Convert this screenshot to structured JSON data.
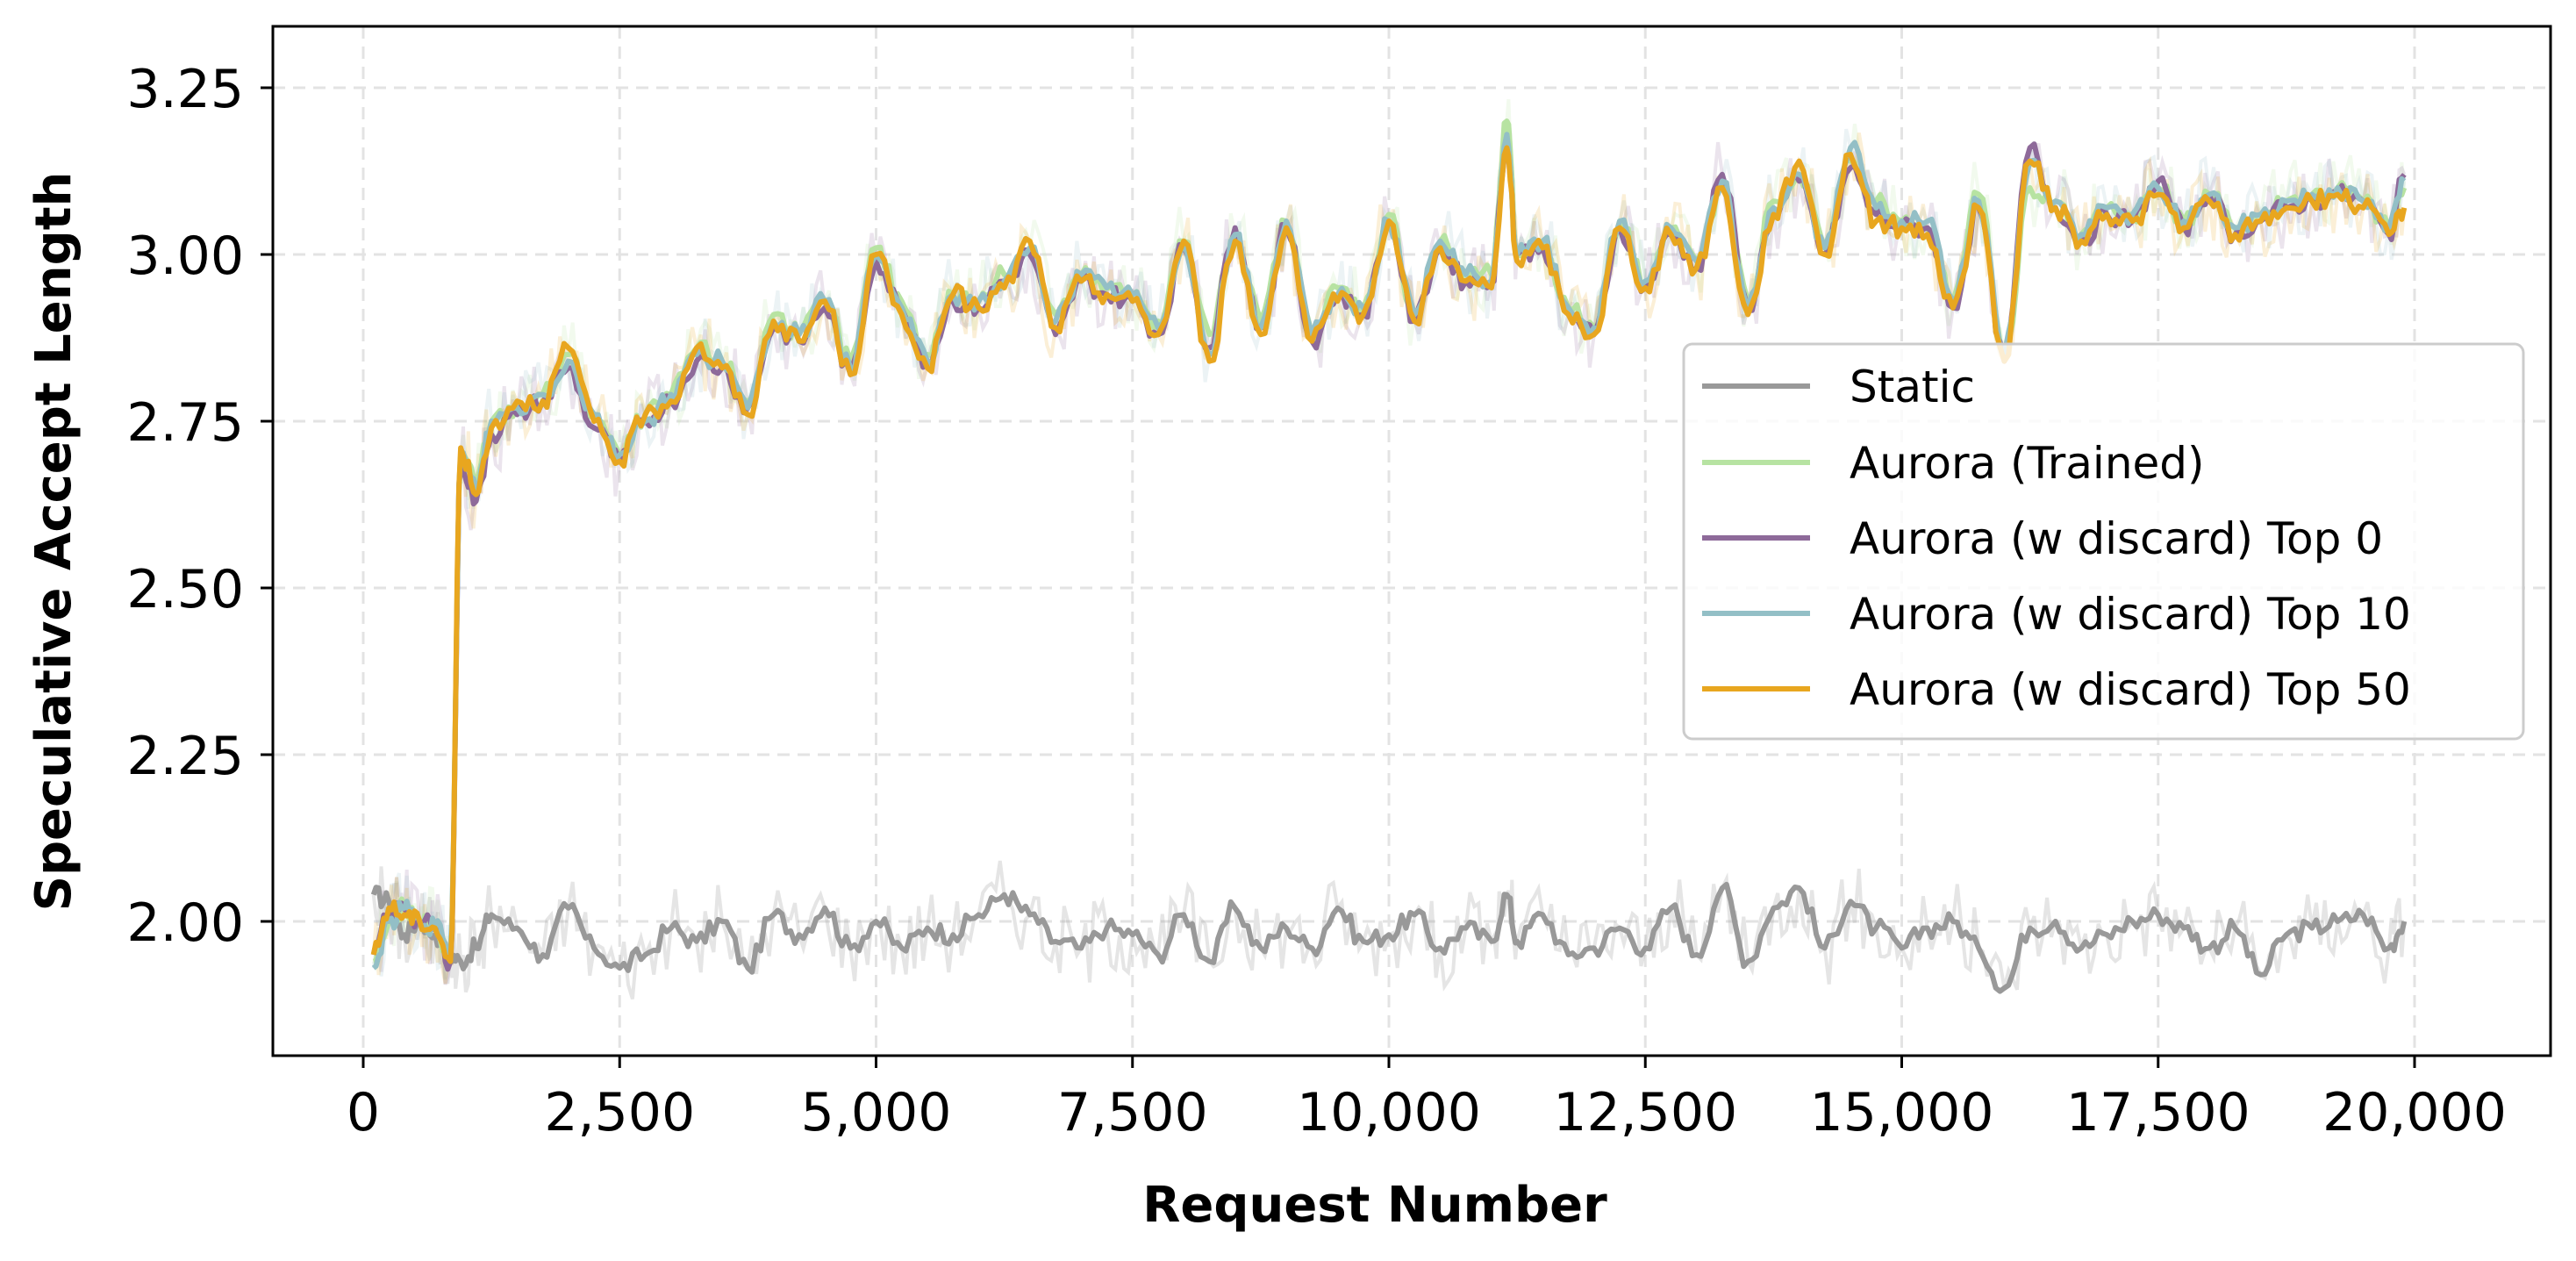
{
  "chart_data": {
    "type": "line",
    "title": "",
    "xlabel": "Request Number",
    "ylabel": "Speculative Accept Length",
    "xlim": [
      -900,
      21200
    ],
    "ylim": [
      1.797,
      3.342
    ],
    "xticks": [
      0,
      2500,
      5000,
      7500,
      10000,
      12500,
      15000,
      17500,
      20000
    ],
    "xtick_labels": [
      "0",
      "2,500",
      "5,000",
      "7,500",
      "10,000",
      "12,500",
      "15,000",
      "17,500",
      "20,000"
    ],
    "yticks": [
      2.0,
      2.25,
      2.5,
      2.75,
      3.0,
      3.25
    ],
    "ytick_labels": [
      "2.00",
      "2.25",
      "2.50",
      "2.75",
      "3.00",
      "3.25"
    ],
    "grid": true,
    "legend_position": "center right",
    "x": [
      100,
      250,
      400,
      550,
      700,
      850,
      950,
      1100,
      1250,
      1500,
      1750,
      2000,
      2250,
      2500,
      2750,
      3000,
      3250,
      3500,
      3750,
      4000,
      4250,
      4500,
      4750,
      5000,
      5250,
      5500,
      5750,
      6000,
      6250,
      6500,
      6750,
      7000,
      7250,
      7500,
      7750,
      8000,
      8250,
      8500,
      8750,
      9000,
      9250,
      9500,
      9750,
      10000,
      10250,
      10500,
      10750,
      11000,
      11150,
      11250,
      11500,
      11750,
      12000,
      12250,
      12500,
      12750,
      13000,
      13250,
      13500,
      13750,
      14000,
      14250,
      14500,
      14750,
      15000,
      15250,
      15500,
      15750,
      16000,
      16250,
      16500,
      16750,
      17000,
      17250,
      17500,
      17750,
      18000,
      18250,
      18500,
      18750,
      19000,
      19250,
      19500,
      19750,
      19900
    ],
    "series": [
      {
        "name": "Static",
        "color": "#999999",
        "values": [
          2.04,
          2.03,
          1.98,
          2.0,
          1.98,
          1.95,
          1.94,
          1.96,
          2.01,
          1.99,
          1.95,
          2.02,
          1.96,
          1.93,
          1.95,
          1.99,
          1.97,
          2.0,
          1.93,
          2.01,
          1.98,
          2.02,
          1.96,
          2.0,
          1.96,
          1.99,
          1.98,
          2.01,
          2.04,
          2.01,
          1.97,
          1.96,
          1.99,
          1.98,
          1.95,
          2.01,
          1.94,
          2.02,
          1.96,
          1.99,
          1.96,
          2.02,
          1.97,
          1.98,
          2.01,
          1.96,
          1.99,
          1.97,
          2.04,
          1.97,
          2.01,
          1.95,
          1.96,
          1.99,
          1.96,
          2.02,
          1.95,
          2.05,
          1.94,
          2.02,
          2.05,
          1.96,
          2.03,
          1.99,
          1.96,
          1.99,
          2.0,
          1.96,
          1.9,
          1.99,
          2.0,
          1.96,
          1.98,
          2.0,
          2.01,
          1.99,
          1.96,
          1.99,
          1.92,
          1.98,
          1.99,
          2.0,
          2.01,
          1.96,
          2.0
        ]
      },
      {
        "name": "Aurora (Trained)",
        "color": "#b7e3a2",
        "values": [
          1.94,
          2.0,
          2.02,
          2.0,
          1.99,
          1.95,
          2.7,
          2.66,
          2.75,
          2.77,
          2.79,
          2.85,
          2.76,
          2.7,
          2.76,
          2.79,
          2.86,
          2.84,
          2.78,
          2.91,
          2.88,
          2.93,
          2.84,
          3.01,
          2.93,
          2.85,
          2.94,
          2.93,
          2.97,
          3.01,
          2.91,
          2.97,
          2.95,
          2.94,
          2.9,
          3.02,
          2.88,
          3.03,
          2.9,
          3.05,
          2.88,
          2.95,
          2.92,
          3.06,
          2.91,
          3.02,
          2.97,
          2.97,
          3.2,
          3.0,
          3.02,
          2.92,
          2.89,
          3.05,
          2.96,
          3.04,
          2.99,
          3.1,
          2.93,
          3.08,
          3.12,
          3.01,
          3.14,
          3.08,
          3.05,
          3.04,
          2.93,
          3.09,
          2.85,
          3.1,
          3.08,
          3.03,
          3.07,
          3.06,
          3.1,
          3.05,
          3.09,
          3.04,
          3.06,
          3.08,
          3.09,
          3.1,
          3.08,
          3.04,
          3.1
        ]
      },
      {
        "name": "Aurora (w discard) Top 0",
        "color": "#8e6a9a",
        "values": [
          1.95,
          2.01,
          2.02,
          2.0,
          1.99,
          1.94,
          2.69,
          2.63,
          2.73,
          2.76,
          2.78,
          2.83,
          2.74,
          2.69,
          2.75,
          2.78,
          2.84,
          2.83,
          2.77,
          2.89,
          2.87,
          2.92,
          2.82,
          2.99,
          2.92,
          2.84,
          2.93,
          2.92,
          2.96,
          3.0,
          2.88,
          2.96,
          2.94,
          2.93,
          2.88,
          3.01,
          2.86,
          3.04,
          2.89,
          3.04,
          2.87,
          2.94,
          2.91,
          3.05,
          2.9,
          3.01,
          2.96,
          2.96,
          3.17,
          3.0,
          3.01,
          2.91,
          2.88,
          3.04,
          2.95,
          3.03,
          2.98,
          3.12,
          2.92,
          3.06,
          3.11,
          3.0,
          3.13,
          3.06,
          3.04,
          3.04,
          2.92,
          3.07,
          2.84,
          3.16,
          3.07,
          3.02,
          3.06,
          3.05,
          3.11,
          3.04,
          3.09,
          3.03,
          3.05,
          3.07,
          3.08,
          3.09,
          3.08,
          3.03,
          3.12
        ]
      },
      {
        "name": "Aurora (w discard) Top 10",
        "color": "#93bfc6",
        "values": [
          1.93,
          2.0,
          2.02,
          2.0,
          1.99,
          1.95,
          2.7,
          2.65,
          2.75,
          2.77,
          2.79,
          2.84,
          2.76,
          2.7,
          2.75,
          2.79,
          2.85,
          2.84,
          2.77,
          2.9,
          2.88,
          2.93,
          2.83,
          3.0,
          2.92,
          2.84,
          2.94,
          2.93,
          2.96,
          3.01,
          2.9,
          2.97,
          2.95,
          2.94,
          2.89,
          3.02,
          2.85,
          3.03,
          2.89,
          3.05,
          2.88,
          2.94,
          2.92,
          3.05,
          2.91,
          3.02,
          2.97,
          2.96,
          3.18,
          3.0,
          3.02,
          2.92,
          2.89,
          3.05,
          2.96,
          3.04,
          2.99,
          3.11,
          2.92,
          3.07,
          3.12,
          3.01,
          3.16,
          3.07,
          3.05,
          3.05,
          2.93,
          3.08,
          2.85,
          3.14,
          3.08,
          3.03,
          3.07,
          3.06,
          3.1,
          3.05,
          3.09,
          3.04,
          3.06,
          3.08,
          3.09,
          3.1,
          3.08,
          3.04,
          3.11
        ]
      },
      {
        "name": "Aurora (w discard) Top 50",
        "color": "#e8a61f",
        "values": [
          1.95,
          2.02,
          2.01,
          2.0,
          1.99,
          1.94,
          2.71,
          2.64,
          2.74,
          2.78,
          2.78,
          2.86,
          2.75,
          2.69,
          2.76,
          2.78,
          2.86,
          2.83,
          2.76,
          2.9,
          2.87,
          2.93,
          2.82,
          3.0,
          2.91,
          2.83,
          2.94,
          2.92,
          2.95,
          3.02,
          2.89,
          2.96,
          2.94,
          2.93,
          2.88,
          3.02,
          2.84,
          3.02,
          2.88,
          3.04,
          2.87,
          2.93,
          2.91,
          3.05,
          2.9,
          3.01,
          2.96,
          2.95,
          3.16,
          2.99,
          3.01,
          2.91,
          2.88,
          3.04,
          2.95,
          3.03,
          2.98,
          3.1,
          2.91,
          3.06,
          3.14,
          3.0,
          3.15,
          3.05,
          3.04,
          3.03,
          2.92,
          3.07,
          2.84,
          3.14,
          3.07,
          3.02,
          3.06,
          3.05,
          3.09,
          3.04,
          3.08,
          3.03,
          3.05,
          3.07,
          3.08,
          3.09,
          3.07,
          3.03,
          3.07
        ]
      }
    ]
  },
  "legend": {
    "items": [
      {
        "label": "Static",
        "color": "#999999"
      },
      {
        "label": "Aurora (Trained)",
        "color": "#b7e3a2"
      },
      {
        "label": "Aurora (w discard) Top 0",
        "color": "#8e6a9a"
      },
      {
        "label": "Aurora (w discard) Top 10",
        "color": "#93bfc6"
      },
      {
        "label": "Aurora (w discard) Top 50",
        "color": "#e8a61f"
      }
    ]
  }
}
